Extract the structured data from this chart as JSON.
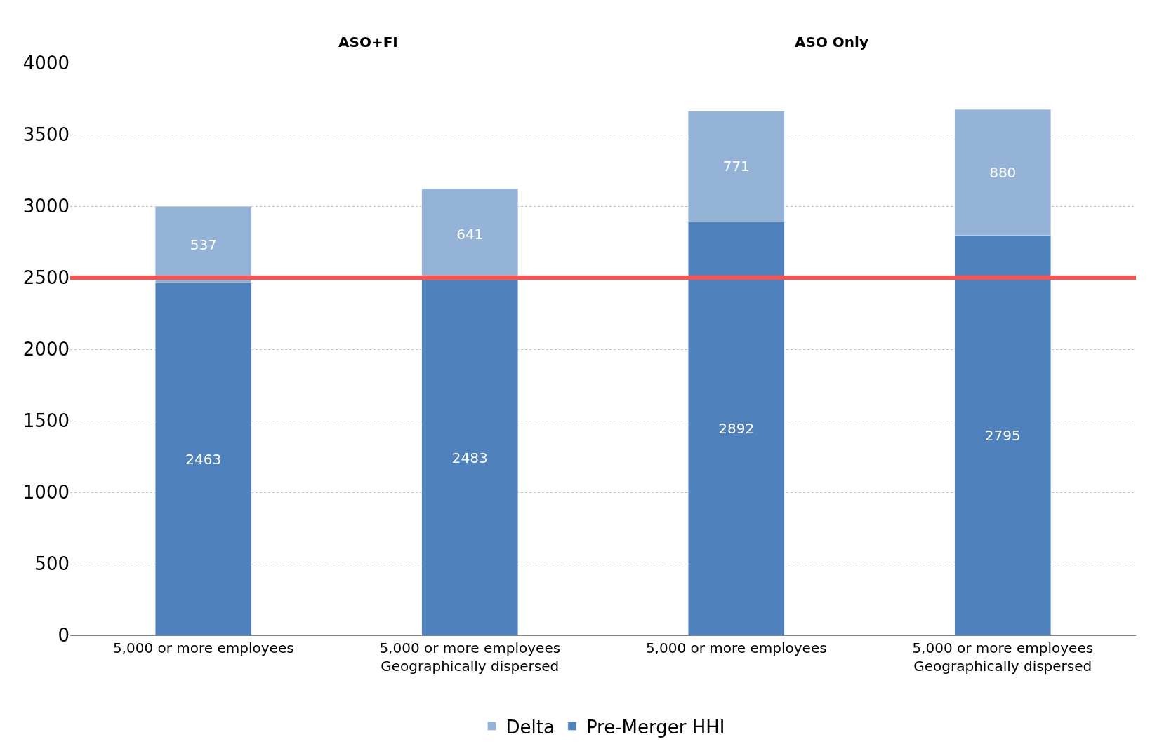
{
  "chart_data": {
    "type": "bar",
    "stacked": true,
    "categories": [
      "5,000 or more employees",
      "5,000 or more employees\nGeographically dispersed",
      "5,000 or more employees",
      "5,000 or more employees\nGeographically dispersed"
    ],
    "series": [
      {
        "name": "Pre-Merger HHI",
        "color": "#4f81bd",
        "values": [
          2463,
          2483,
          2892,
          2795
        ]
      },
      {
        "name": "Delta",
        "color": "#95b3d7",
        "values": [
          537,
          641,
          771,
          880
        ]
      }
    ],
    "ylim": [
      0,
      4000
    ],
    "yticks": [
      0,
      500,
      1000,
      1500,
      2000,
      2500,
      3000,
      3500,
      4000
    ],
    "grid": "y",
    "legend": "bottom",
    "data_labels": true,
    "ref_lines": [
      {
        "axis": "y",
        "value": 2500,
        "color": "#ff5050"
      }
    ],
    "annotations": [
      "ASO+FI",
      "ASO Only"
    ]
  }
}
